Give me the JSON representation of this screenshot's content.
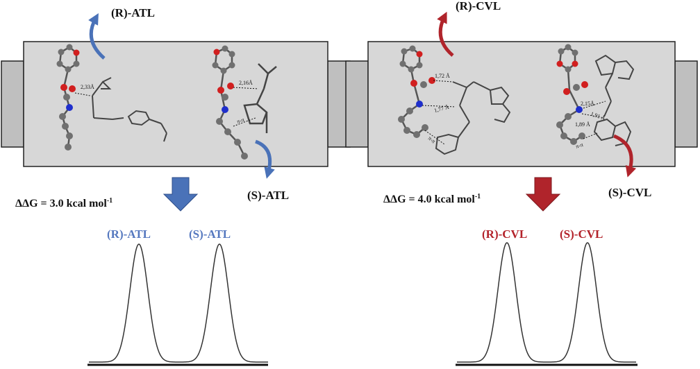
{
  "colors": {
    "atl_accent": "#5578bf",
    "atl_arrow": "#4a72b8",
    "cvl_accent": "#b3222a",
    "cvl_arrow": "#b0242b",
    "column_fill": "#d7d7d7",
    "fitting_fill": "#bfbfbf",
    "atom_carbon": "#707070",
    "atom_oxygen": "#d11f1f",
    "atom_nitrogen": "#1f2fcc"
  },
  "panels": [
    {
      "id": "atl",
      "label_top": "(R)-ATL",
      "label_side": "(S)-ATL",
      "delta_g": "ΔΔG = 3.0 kcal mol",
      "delta_g_sup": "-1",
      "peaks": [
        "(R)-ATL",
        "(S)-ATL"
      ],
      "distances_left": [
        "2,33Å"
      ],
      "distances_right": [
        "2,16Å"
      ],
      "interaction_right": "π-π"
    },
    {
      "id": "cvl",
      "label_top": "(R)-CVL",
      "label_side": "(S)-CVL",
      "delta_g": "ΔΔG = 4.0 kcal mol",
      "delta_g_sup": "-1",
      "peaks": [
        "(R)-CVL",
        "(S)-CVL"
      ],
      "distances_left": [
        "1,72 Å",
        "1,77 Å"
      ],
      "interaction_left": "π-π",
      "distances_right": [
        "2,15Å",
        "1,91 Å",
        "1,89 Å"
      ],
      "interaction_right": "π-π"
    }
  ]
}
